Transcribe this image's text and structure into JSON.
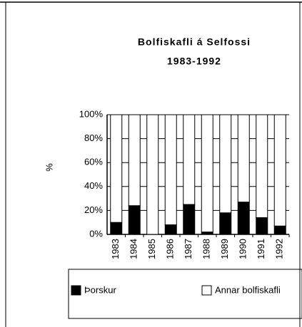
{
  "chart_data": {
    "type": "stacked_bar",
    "title": "Bolfiskafli á Selfossi",
    "subtitle": "1983-1992",
    "y_label": "%",
    "categories": [
      "1983",
      "1984",
      "1985",
      "1986",
      "1987",
      "1988",
      "1989",
      "1990",
      "1991",
      "1992"
    ],
    "series": [
      {
        "name": "Þorskur",
        "color": "#000000",
        "values": [
          10,
          24,
          0,
          8,
          25,
          2,
          18,
          27,
          14,
          7
        ]
      },
      {
        "name": "Annar bolfiskafli",
        "color": "#ffffff",
        "values": [
          90,
          76,
          100,
          92,
          75,
          98,
          82,
          73,
          86,
          93
        ]
      }
    ],
    "ylim": [
      0,
      100
    ],
    "yticks": [
      {
        "value": 0,
        "label": "0%"
      },
      {
        "value": 20,
        "label": "20%"
      },
      {
        "value": 40,
        "label": "40%"
      },
      {
        "value": 60,
        "label": "60%"
      },
      {
        "value": 80,
        "label": "80%"
      },
      {
        "value": 100,
        "label": "100%"
      }
    ],
    "grid": true,
    "legend": "bottom"
  }
}
